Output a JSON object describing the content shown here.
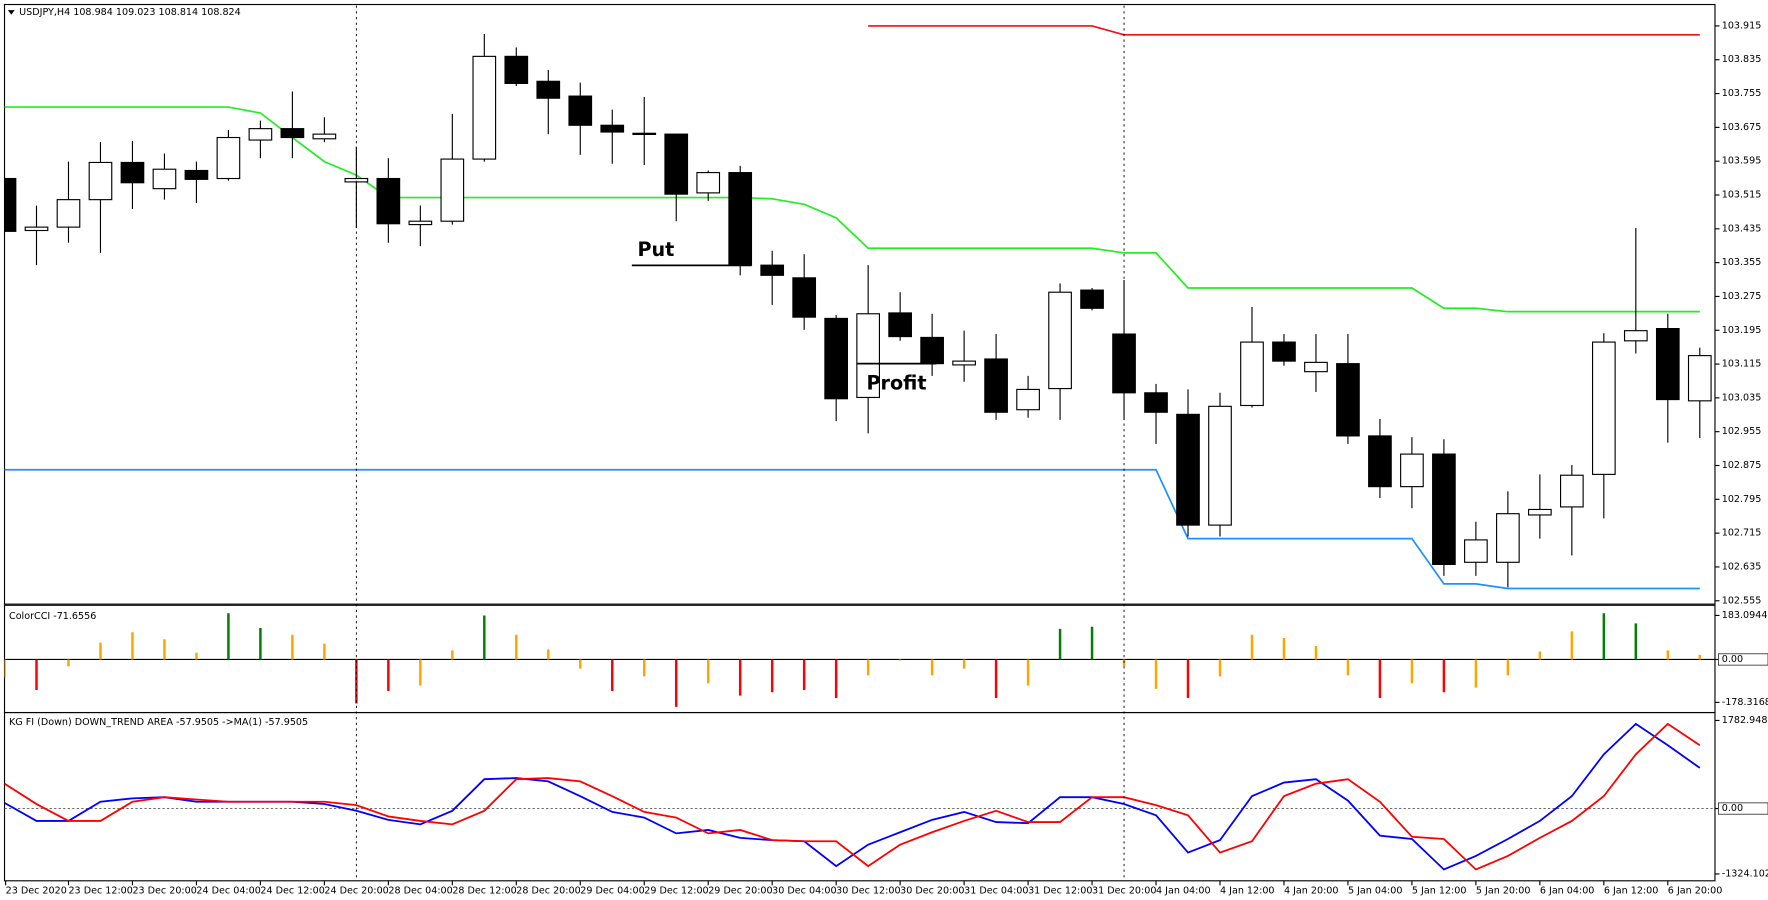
{
  "chart_data": [
    {
      "type": "candlestick",
      "title": "USDJPY,H4  108.984 109.023 108.814 108.824",
      "categories": [
        "23 Dec 2020",
        null,
        "23 Dec 12:00",
        null,
        "23 Dec 20:00",
        null,
        "24 Dec 04:00",
        null,
        "24 Dec 12:00",
        null,
        "24 Dec 20:00",
        null,
        "28 Dec 04:00",
        null,
        "28 Dec 12:00",
        null,
        "28 Dec 20:00",
        null,
        "29 Dec 04:00",
        null,
        "29 Dec 12:00",
        null,
        "29 Dec 20:00",
        null,
        "30 Dec 04:00",
        null,
        "30 Dec 12:00",
        null,
        "30 Dec 20:00",
        null,
        "31 Dec 04:00",
        null,
        "31 Dec 12:00",
        null,
        "31 Dec 20:00",
        null,
        "4 Jan 04:00",
        null,
        "4 Jan 12:00",
        null,
        "4 Jan 20:00",
        null,
        "5 Jan 04:00",
        null,
        "5 Jan 12:00",
        null,
        "5 Jan 20:00",
        null,
        "6 Jan 04:00",
        null,
        "6 Jan 12:00",
        null,
        "6 Jan 20:00",
        null
      ],
      "open": [
        103.554,
        103.431,
        103.439,
        103.504,
        103.592,
        103.53,
        103.573,
        103.554,
        103.645,
        103.672,
        103.648,
        103.546,
        103.554,
        103.445,
        103.453,
        103.6,
        103.843,
        103.784,
        103.749,
        103.68,
        103.659,
        103.659,
        103.52,
        103.568,
        103.349,
        103.319,
        103.223,
        103.036,
        103.236,
        103.178,
        103.113,
        103.127,
        103.007,
        103.057,
        103.29,
        103.186,
        103.047,
        102.996,
        102.734,
        103.017,
        103.167,
        103.097,
        103.116,
        102.945,
        102.825,
        102.902,
        102.646,
        102.646,
        102.758,
        102.777,
        102.854,
        103.17,
        103.199,
        103.028
      ],
      "high": [
        103.557,
        103.49,
        103.594,
        103.64,
        103.643,
        103.613,
        103.594,
        103.669,
        103.691,
        103.76,
        103.699,
        103.629,
        103.602,
        103.49,
        103.707,
        103.896,
        103.864,
        103.811,
        103.781,
        103.717,
        103.747,
        103.659,
        103.573,
        103.584,
        103.383,
        103.375,
        103.231,
        103.349,
        103.285,
        103.234,
        103.194,
        103.186,
        103.087,
        103.306,
        103.295,
        103.314,
        103.068,
        103.055,
        103.047,
        103.25,
        103.186,
        103.186,
        103.186,
        102.985,
        102.942,
        102.937,
        102.742,
        102.814,
        102.854,
        102.876,
        103.188,
        103.437,
        103.234,
        103.154
      ],
      "low": [
        103.426,
        103.349,
        103.402,
        103.378,
        103.482,
        103.504,
        103.496,
        103.549,
        103.602,
        103.602,
        103.64,
        103.437,
        103.402,
        103.394,
        103.445,
        103.594,
        103.773,
        103.659,
        103.61,
        103.589,
        103.586,
        103.453,
        103.501,
        103.325,
        103.255,
        103.196,
        102.98,
        102.951,
        103.17,
        103.087,
        103.073,
        102.983,
        102.988,
        102.983,
        103.242,
        102.983,
        102.926,
        102.707,
        102.707,
        103.012,
        103.111,
        103.049,
        102.926,
        102.798,
        102.774,
        102.614,
        102.614,
        102.587,
        102.702,
        102.662,
        102.75,
        103.14,
        102.929,
        102.94
      ],
      "close": [
        103.429,
        103.439,
        103.504,
        103.592,
        103.544,
        103.576,
        103.552,
        103.651,
        103.672,
        103.651,
        103.659,
        103.554,
        103.447,
        103.453,
        103.6,
        103.843,
        103.779,
        103.744,
        103.68,
        103.664,
        103.661,
        103.517,
        103.568,
        103.349,
        103.325,
        103.226,
        103.033,
        103.234,
        103.18,
        103.116,
        103.122,
        103.001,
        103.055,
        103.285,
        103.247,
        103.047,
        103.001,
        102.734,
        103.015,
        103.167,
        103.122,
        103.119,
        102.945,
        102.825,
        102.902,
        102.641,
        102.699,
        102.761,
        102.771,
        102.852,
        103.167,
        103.194,
        103.031,
        103.135
      ],
      "up_color": "#ffffff",
      "down_color": "#000000",
      "series": [
        {
          "color": "#ee1111",
          "values": [
            null,
            null,
            null,
            null,
            null,
            null,
            null,
            null,
            null,
            null,
            null,
            null,
            null,
            null,
            null,
            null,
            null,
            null,
            null,
            null,
            null,
            null,
            null,
            null,
            null,
            null,
            null,
            103.915,
            103.915,
            103.915,
            103.915,
            103.915,
            103.915,
            103.915,
            103.915,
            103.894,
            103.894,
            103.894,
            103.894,
            103.894,
            103.894,
            103.894,
            103.894,
            103.894,
            103.894,
            103.894,
            103.894,
            103.894,
            103.894,
            103.894,
            103.894,
            103.894,
            103.894,
            103.894
          ]
        },
        {
          "color": "#22ee22",
          "values": [
            103.723,
            103.723,
            103.723,
            103.723,
            103.723,
            103.723,
            103.723,
            103.723,
            103.709,
            103.651,
            103.594,
            103.562,
            103.509,
            103.509,
            103.509,
            103.509,
            103.509,
            103.509,
            103.509,
            103.509,
            103.509,
            103.509,
            103.509,
            103.509,
            103.506,
            103.493,
            103.461,
            103.389,
            103.389,
            103.389,
            103.389,
            103.389,
            103.389,
            103.389,
            103.389,
            103.378,
            103.378,
            103.295,
            103.295,
            103.295,
            103.295,
            103.295,
            103.295,
            103.295,
            103.295,
            103.247,
            103.247,
            103.239,
            103.239,
            103.239,
            103.239,
            103.239,
            103.239,
            103.239
          ]
        },
        {
          "color": "#1e90ff",
          "values": [
            102.865,
            102.865,
            102.865,
            102.865,
            102.865,
            102.865,
            102.865,
            102.865,
            102.865,
            102.865,
            102.865,
            102.865,
            102.865,
            102.865,
            102.865,
            102.865,
            102.865,
            102.865,
            102.865,
            102.865,
            102.865,
            102.865,
            102.865,
            102.865,
            102.865,
            102.865,
            102.865,
            102.865,
            102.865,
            102.865,
            102.865,
            102.865,
            102.865,
            102.865,
            102.865,
            102.865,
            102.865,
            102.702,
            102.702,
            102.702,
            102.702,
            102.702,
            102.702,
            102.702,
            102.702,
            102.595,
            102.595,
            102.584,
            102.584,
            102.584,
            102.584,
            102.584,
            102.584,
            102.584
          ]
        }
      ],
      "annotations": [
        "Put",
        "Profit"
      ],
      "ylim": [
        102.547,
        103.963
      ],
      "yticks": [
        102.555,
        102.635,
        102.715,
        102.795,
        102.875,
        102.955,
        103.035,
        103.115,
        103.195,
        103.275,
        103.355,
        103.435,
        103.515,
        103.595,
        103.675,
        103.755,
        103.835,
        103.915
      ]
    },
    {
      "type": "bar",
      "title": "ColorCCI -71.6556",
      "values": [
        -75,
        -127,
        -28,
        70,
        113,
        84,
        28,
        192,
        131,
        103,
        66,
        -183,
        -131,
        -108,
        38,
        183,
        103,
        42,
        -38,
        -131,
        -70,
        -197,
        -99,
        -150,
        -136,
        -127,
        -160,
        -66,
        -5,
        -66,
        -38,
        -160,
        -108,
        127,
        136,
        -28,
        -122,
        -160,
        -70,
        103,
        89,
        56,
        -66,
        -160,
        -99,
        -136,
        -117,
        -66,
        33,
        117,
        192,
        150,
        38,
        19
      ],
      "colors": [
        "#ffa500",
        "#ff0000",
        "#ffa500",
        "#ffa500",
        "#ffa500",
        "#ffa500",
        "#ffa500",
        "#008000",
        "#008000",
        "#ffa500",
        "#ffa500",
        "#ff0000",
        "#ff0000",
        "#ffa500",
        "#ffa500",
        "#008000",
        "#ffa500",
        "#ffa500",
        "#ffa500",
        "#ff0000",
        "#ffa500",
        "#ff0000",
        "#ffa500",
        "#ff0000",
        "#ff0000",
        "#ff0000",
        "#ff0000",
        "#ffa500",
        "#ffa500",
        "#ffa500",
        "#ffa500",
        "#ff0000",
        "#ffa500",
        "#008000",
        "#008000",
        "#ffa500",
        "#ffa500",
        "#ff0000",
        "#ffa500",
        "#ffa500",
        "#ffa500",
        "#ffa500",
        "#ffa500",
        "#ff0000",
        "#ffa500",
        "#ff0000",
        "#ffa500",
        "#ffa500",
        "#ffa500",
        "#ffa500",
        "#008000",
        "#008000",
        "#ffa500",
        "#ffa500"
      ],
      "ylim": [
        -215.9,
        220.6
      ],
      "yticks": [
        183.0944,
        {
          "value": 0,
          "label": "0.00"
        },
        -178.3168
      ]
    },
    {
      "type": "line",
      "title": "KG FI   (Down)   DOWN_TREND AREA   -57.9505  ->MA(1) -57.9505",
      "series": [
        {
          "color": "#0000ff",
          "values": [
            114,
            -251,
            -251,
            137,
            206,
            229,
            137,
            137,
            137,
            137,
            91,
            -46,
            -229,
            -320,
            -46,
            594,
            617,
            549,
            251,
            -69,
            -183,
            -503,
            -434,
            -594,
            -640,
            -663,
            -1166,
            -731,
            -480,
            -229,
            -69,
            -274,
            -297,
            229,
            229,
            91,
            -137,
            -891,
            -640,
            251,
            526,
            594,
            160,
            -549,
            -617,
            -1234,
            -960,
            -617,
            -251,
            251,
            1097,
            1714,
            1280,
            823
          ]
        },
        {
          "color": "#ff0000",
          "values": [
            503,
            91,
            -251,
            -251,
            137,
            229,
            183,
            137,
            137,
            137,
            137,
            69,
            -160,
            -251,
            -320,
            -46,
            594,
            617,
            549,
            251,
            -69,
            -183,
            -503,
            -434,
            -640,
            -663,
            -663,
            -1166,
            -731,
            -480,
            -251,
            -46,
            -274,
            -274,
            229,
            229,
            69,
            -137,
            -891,
            -663,
            251,
            503,
            594,
            137,
            -571,
            -617,
            -1234,
            -960,
            -594,
            -251,
            251,
            1097,
            1714,
            1280
          ]
        }
      ],
      "ylim": [
        -1463,
        1920
      ],
      "yticks": [
        1782.948,
        {
          "value": 0,
          "label": "0.00"
        },
        -1324.1024
      ]
    }
  ]
}
